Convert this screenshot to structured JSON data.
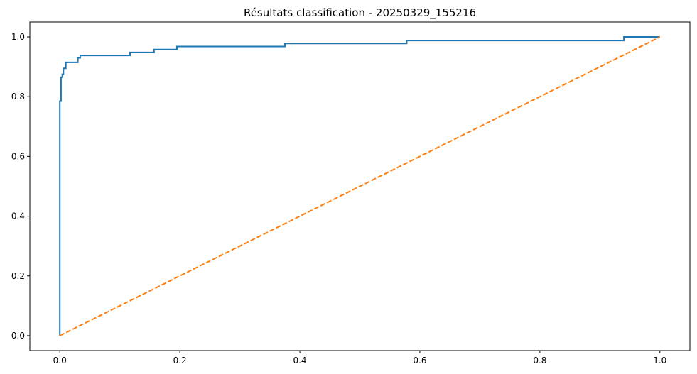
{
  "chart_data": {
    "type": "line",
    "title": "Résultats classification - 20250329_155216",
    "xlabel": "",
    "ylabel": "",
    "xlim": [
      -0.05,
      1.05
    ],
    "ylim": [
      -0.05,
      1.05
    ],
    "x_ticks": [
      0.0,
      0.2,
      0.4,
      0.6,
      0.8,
      1.0
    ],
    "y_ticks": [
      0.0,
      0.2,
      0.4,
      0.6,
      0.8,
      1.0
    ],
    "tick_labels_x": [
      "0.0",
      "0.2",
      "0.4",
      "0.6",
      "0.8",
      "1.0"
    ],
    "tick_labels_y": [
      "0.0",
      "0.2",
      "0.4",
      "0.6",
      "0.8",
      "1.0"
    ],
    "grid": false,
    "legend": "none",
    "series": [
      {
        "color": "#1f77b4",
        "line_style": "solid",
        "drawstyle": "steps",
        "x": [
          0.0,
          0.0,
          0.002,
          0.002,
          0.004,
          0.004,
          0.006,
          0.006,
          0.01,
          0.01,
          0.03,
          0.03,
          0.034,
          0.034,
          0.117,
          0.117,
          0.157,
          0.157,
          0.195,
          0.195,
          0.375,
          0.375,
          0.578,
          0.578,
          0.94,
          0.94,
          1.0
        ],
        "y": [
          0.0,
          0.785,
          0.785,
          0.865,
          0.865,
          0.875,
          0.875,
          0.895,
          0.895,
          0.915,
          0.915,
          0.93,
          0.93,
          0.938,
          0.938,
          0.948,
          0.948,
          0.958,
          0.958,
          0.968,
          0.968,
          0.978,
          0.978,
          0.988,
          0.988,
          1.0,
          1.0
        ]
      },
      {
        "color": "#ff7f0e",
        "line_style": "dashed",
        "x": [
          0.0,
          1.0
        ],
        "y": [
          0.0,
          1.0
        ]
      }
    ]
  }
}
